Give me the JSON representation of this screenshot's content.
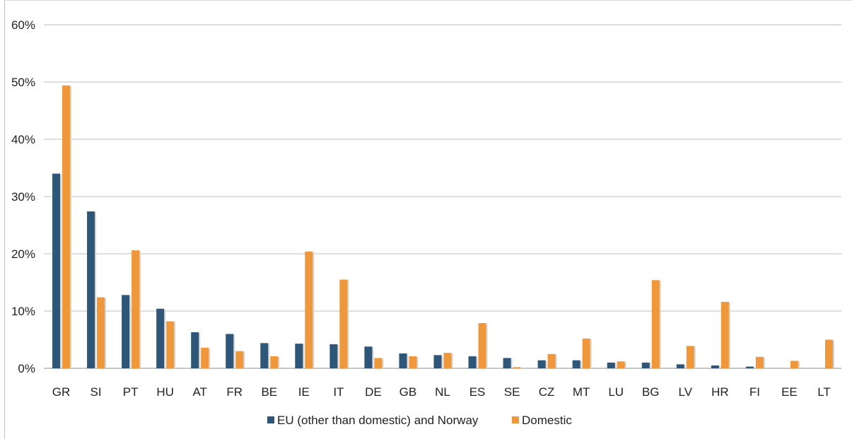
{
  "chart_data": {
    "type": "bar",
    "categories": [
      "GR",
      "SI",
      "PT",
      "HU",
      "AT",
      "FR",
      "BE",
      "IE",
      "IT",
      "DE",
      "GB",
      "NL",
      "ES",
      "SE",
      "CZ",
      "MT",
      "LU",
      "BG",
      "LV",
      "HR",
      "FI",
      "EE",
      "LT"
    ],
    "series": [
      {
        "name": "EU (other than domestic) and Norway",
        "color": "#2e5678",
        "values": [
          34.0,
          27.4,
          12.8,
          10.4,
          6.3,
          6.0,
          4.4,
          4.3,
          4.2,
          3.8,
          2.6,
          2.3,
          2.1,
          1.8,
          1.4,
          1.4,
          1.0,
          1.0,
          0.7,
          0.5,
          0.3,
          0.0,
          0.0
        ]
      },
      {
        "name": "Domestic",
        "color": "#f0973a",
        "values": [
          49.4,
          12.4,
          20.6,
          8.2,
          3.6,
          3.0,
          2.1,
          20.4,
          15.5,
          1.8,
          2.1,
          2.7,
          7.9,
          0.2,
          2.5,
          5.2,
          1.2,
          15.4,
          3.9,
          11.6,
          2.0,
          1.3,
          5.0
        ]
      }
    ],
    "yticks": [
      "0%",
      "10%",
      "20%",
      "30%",
      "40%",
      "50%",
      "60%"
    ],
    "ylim": [
      0,
      60
    ],
    "title": "",
    "xlabel": "",
    "ylabel": "",
    "grid": true,
    "legend_position": "bottom"
  }
}
